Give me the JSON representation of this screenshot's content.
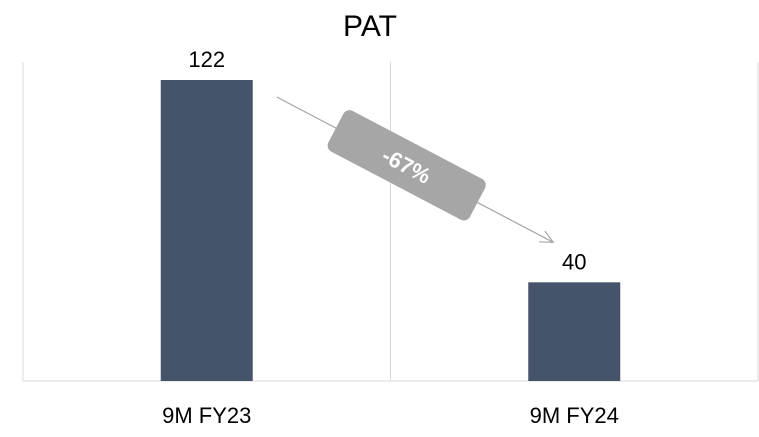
{
  "chart_data": {
    "type": "bar",
    "title": "PAT",
    "categories": [
      "9M FY23",
      "9M FY24"
    ],
    "values": [
      122,
      40
    ],
    "data_labels": [
      "122",
      "40"
    ],
    "change_annotation": {
      "label": "-67%",
      "from_category": "9M FY23",
      "to_category": "9M FY24"
    },
    "xlabel": "",
    "ylabel": "",
    "ylim": [
      0,
      122
    ],
    "grid": false,
    "legend": "none",
    "colors": {
      "bar": "#46546B",
      "annotation_badge": "#A6A6A6",
      "annotation_text": "#ffffff",
      "arrow": "#A6A6A6",
      "axis": "#D9D9D9",
      "text": "#000000"
    }
  }
}
